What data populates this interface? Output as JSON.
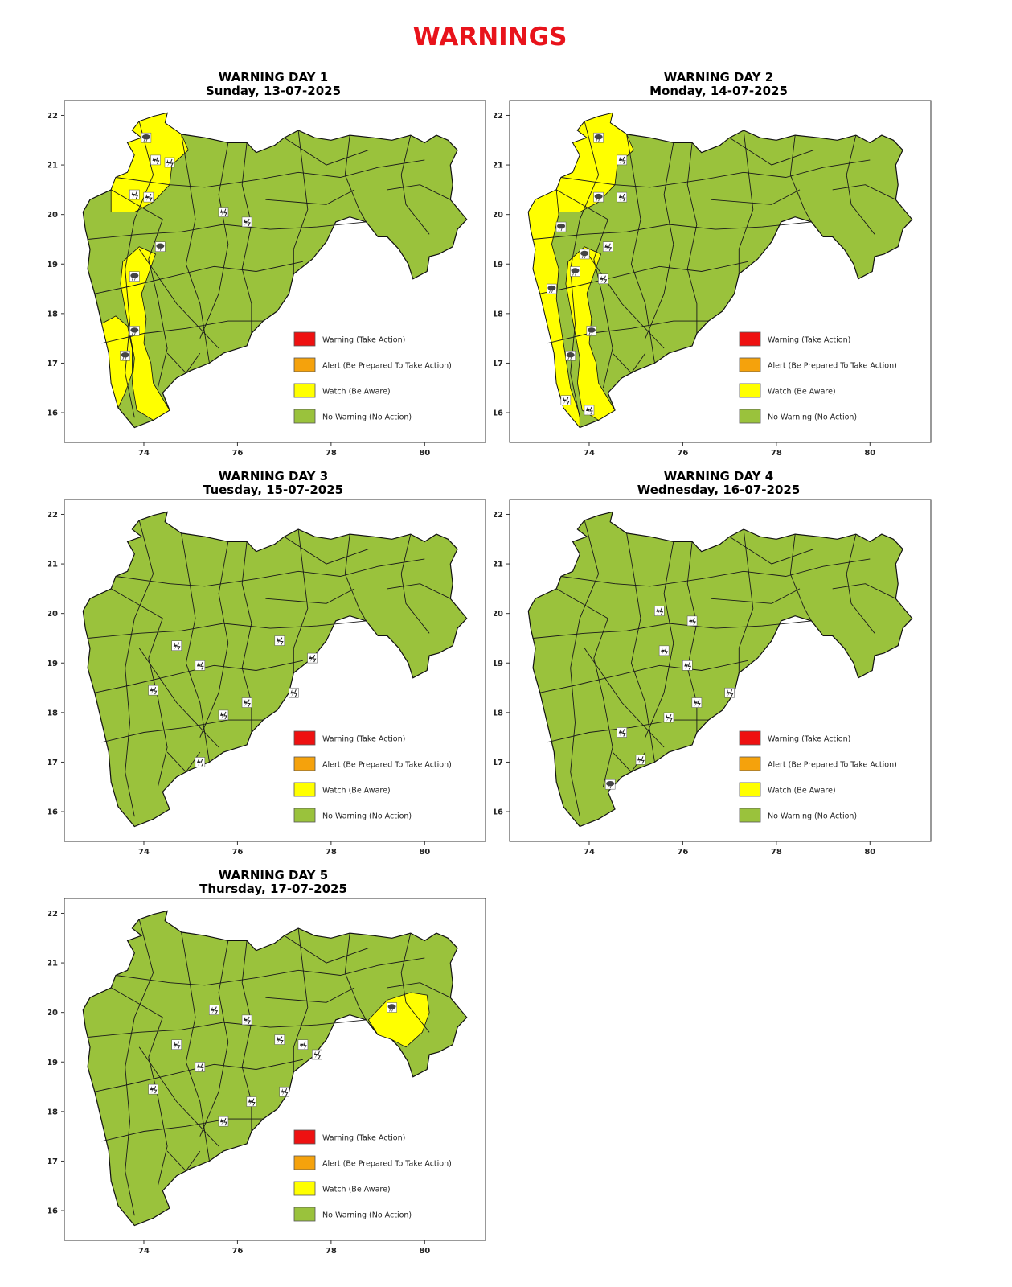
{
  "page": {
    "title": "WARNINGS"
  },
  "colors": {
    "warning": "#ee1111",
    "alert": "#f5a20c",
    "watch": "#ffff00",
    "no_warning": "#9ac23c",
    "title_red": "#e8131b"
  },
  "legend": [
    {
      "label": "Warning (Take Action)",
      "color_key": "warning"
    },
    {
      "label": "Alert (Be Prepared To Take Action)",
      "color_key": "alert"
    },
    {
      "label": "Watch (Be Aware)",
      "color_key": "watch"
    },
    {
      "label": "No Warning (No Action)",
      "color_key": "no_warning"
    }
  ],
  "axes": {
    "x_ticks": [
      "74",
      "76",
      "78",
      "80"
    ],
    "y_ticks": [
      "22",
      "21",
      "20",
      "19",
      "18",
      "17",
      "16"
    ],
    "xlim": [
      72.3,
      81.3
    ],
    "ylim": [
      15.4,
      22.3
    ]
  },
  "days": [
    {
      "label": "WARNING DAY 1",
      "date": "Sunday, 13-07-2025",
      "watch_areas": [
        "north-west belt",
        "konkan coast",
        "ghat west"
      ],
      "icons": [
        "cloud-rain",
        "lightning",
        "lightning",
        "lightning",
        "lightning",
        "cloud-rain",
        "lightning",
        "lightning",
        "cloud-rain",
        "cloud-rain",
        "cloud-rain"
      ]
    },
    {
      "label": "WARNING DAY 2",
      "date": "Monday, 14-07-2025",
      "watch_areas": [
        "north-west belt",
        "konkan coast full",
        "ghat west"
      ],
      "icons": [
        "cloud-rain",
        "lightning",
        "lightning",
        "cloud-rain",
        "lightning",
        "cloud-rain",
        "cloud-rain",
        "cloud-rain",
        "cloud-rain",
        "cloud-rain",
        "cloud-rain",
        "lightning",
        "lightning",
        "lightning"
      ]
    },
    {
      "label": "WARNING DAY 3",
      "date": "Tuesday, 15-07-2025",
      "watch_areas": [],
      "icons": [
        "lightning",
        "lightning",
        "lightning",
        "lightning",
        "lightning",
        "lightning",
        "lightning",
        "lightning",
        "lightning"
      ]
    },
    {
      "label": "WARNING DAY 4",
      "date": "Wednesday, 16-07-2025",
      "watch_areas": [],
      "icons": [
        "lightning",
        "lightning",
        "lightning",
        "lightning",
        "lightning",
        "lightning",
        "lightning",
        "lightning",
        "lightning",
        "cloud-rain"
      ]
    },
    {
      "label": "WARNING DAY 5",
      "date": "Thursday, 17-07-2025",
      "watch_areas": [
        "chandrapur"
      ],
      "icons": [
        "lightning",
        "lightning",
        "lightning",
        "lightning",
        "lightning",
        "lightning",
        "lightning",
        "lightning",
        "lightning",
        "lightning",
        "lightning",
        "cloud-rain"
      ]
    }
  ]
}
